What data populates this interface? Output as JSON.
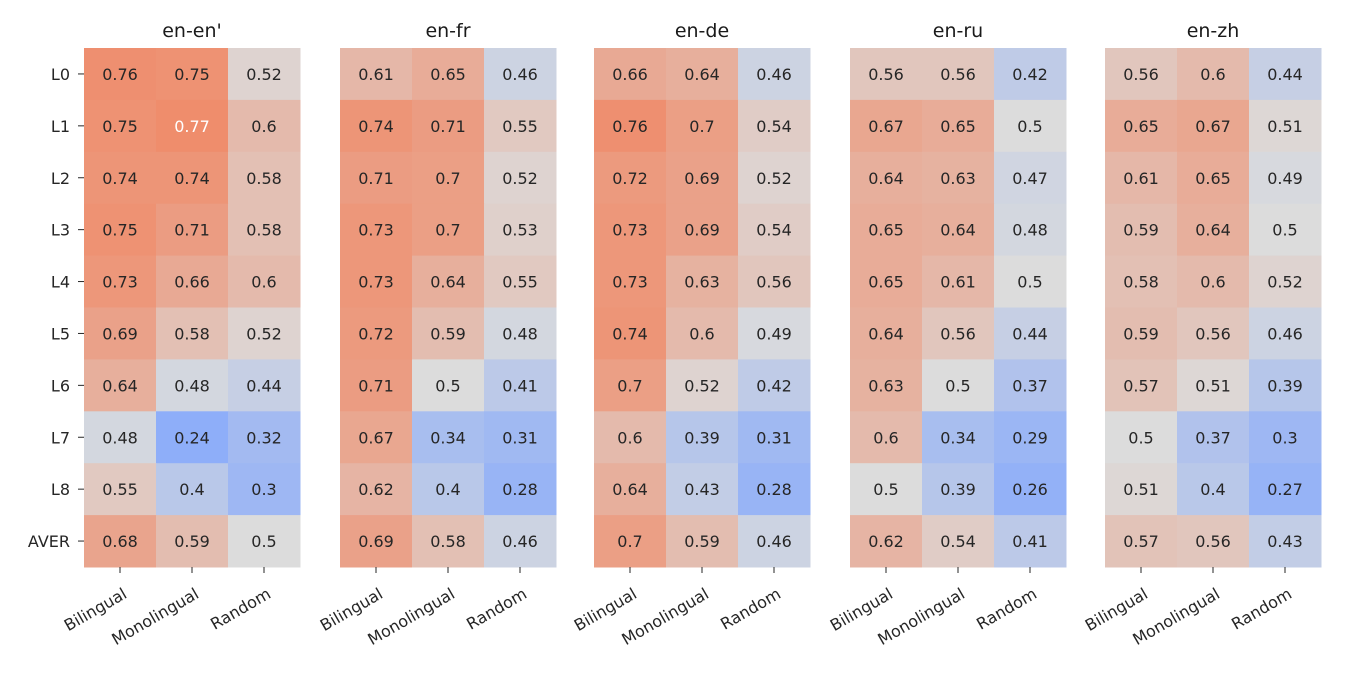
{
  "chart_data": {
    "type": "heatmap",
    "rows": [
      "L0",
      "L1",
      "L2",
      "L3",
      "L4",
      "L5",
      "L6",
      "L7",
      "L8",
      "AVER"
    ],
    "columns": [
      "Bilingual",
      "Monolingual",
      "Random"
    ],
    "color_scale": {
      "low": "#8eaef9",
      "mid": "#dcdcdc",
      "high": "#ef8d6c",
      "vmin": 0.24,
      "vmid": 0.5,
      "vmax": 0.77
    },
    "panels": [
      {
        "title": "en-en'",
        "values": [
          [
            0.76,
            0.75,
            0.52
          ],
          [
            0.75,
            0.77,
            0.6
          ],
          [
            0.74,
            0.74,
            0.58
          ],
          [
            0.75,
            0.71,
            0.58
          ],
          [
            0.73,
            0.66,
            0.6
          ],
          [
            0.69,
            0.58,
            0.52
          ],
          [
            0.64,
            0.48,
            0.44
          ],
          [
            0.48,
            0.24,
            0.32
          ],
          [
            0.55,
            0.4,
            0.3
          ],
          [
            0.68,
            0.59,
            0.5
          ]
        ]
      },
      {
        "title": "en-fr",
        "values": [
          [
            0.61,
            0.65,
            0.46
          ],
          [
            0.74,
            0.71,
            0.55
          ],
          [
            0.71,
            0.7,
            0.52
          ],
          [
            0.73,
            0.7,
            0.53
          ],
          [
            0.73,
            0.64,
            0.55
          ],
          [
            0.72,
            0.59,
            0.48
          ],
          [
            0.71,
            0.5,
            0.41
          ],
          [
            0.67,
            0.34,
            0.31
          ],
          [
            0.62,
            0.4,
            0.28
          ],
          [
            0.69,
            0.58,
            0.46
          ]
        ]
      },
      {
        "title": "en-de",
        "values": [
          [
            0.66,
            0.64,
            0.46
          ],
          [
            0.76,
            0.7,
            0.54
          ],
          [
            0.72,
            0.69,
            0.52
          ],
          [
            0.73,
            0.69,
            0.54
          ],
          [
            0.73,
            0.63,
            0.56
          ],
          [
            0.74,
            0.6,
            0.49
          ],
          [
            0.7,
            0.52,
            0.42
          ],
          [
            0.6,
            0.39,
            0.31
          ],
          [
            0.64,
            0.43,
            0.28
          ],
          [
            0.7,
            0.59,
            0.46
          ]
        ]
      },
      {
        "title": "en-ru",
        "values": [
          [
            0.56,
            0.56,
            0.42
          ],
          [
            0.67,
            0.65,
            0.5
          ],
          [
            0.64,
            0.63,
            0.47
          ],
          [
            0.65,
            0.64,
            0.48
          ],
          [
            0.65,
            0.61,
            0.5
          ],
          [
            0.64,
            0.56,
            0.44
          ],
          [
            0.63,
            0.5,
            0.37
          ],
          [
            0.6,
            0.34,
            0.29
          ],
          [
            0.5,
            0.39,
            0.26
          ],
          [
            0.62,
            0.54,
            0.41
          ]
        ]
      },
      {
        "title": "en-zh",
        "values": [
          [
            0.56,
            0.6,
            0.44
          ],
          [
            0.65,
            0.67,
            0.51
          ],
          [
            0.61,
            0.65,
            0.49
          ],
          [
            0.59,
            0.64,
            0.5
          ],
          [
            0.58,
            0.6,
            0.52
          ],
          [
            0.59,
            0.56,
            0.46
          ],
          [
            0.57,
            0.51,
            0.39
          ],
          [
            0.5,
            0.37,
            0.3
          ],
          [
            0.51,
            0.4,
            0.27
          ],
          [
            0.57,
            0.56,
            0.43
          ]
        ]
      }
    ]
  }
}
